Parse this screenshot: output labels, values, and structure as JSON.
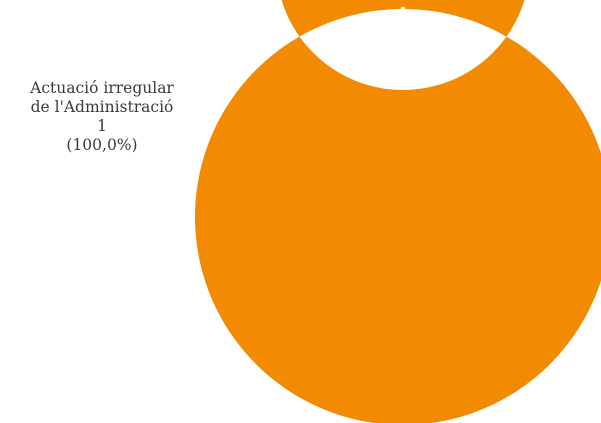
{
  "chart_data": {
    "type": "pie",
    "variant": "donut",
    "categories": [
      "Actuació irregular de l'Administració"
    ],
    "values": [
      1
    ],
    "percentages": [
      "100,0%"
    ],
    "colors": [
      "#F28A02"
    ],
    "labels": [
      {
        "line1": "Actuació irregular",
        "line2": "de l'Administració",
        "value": "1",
        "percent": "(100,0%)"
      }
    ]
  }
}
